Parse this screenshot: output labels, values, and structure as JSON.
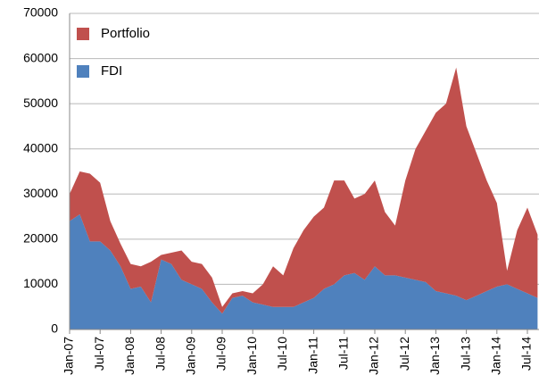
{
  "chart_data": {
    "type": "stacked-area",
    "categories": [
      "Jan-07",
      null,
      null,
      "Jul-07",
      null,
      null,
      "Jan-08",
      null,
      null,
      "Jul-08",
      null,
      null,
      "Jan-09",
      null,
      null,
      "Jul-09",
      null,
      null,
      "Jan-10",
      null,
      null,
      "Jul-10",
      null,
      null,
      "Jan-11",
      null,
      null,
      "Jul-11",
      null,
      null,
      "Jan-12",
      null,
      null,
      "Jul-12",
      null,
      null,
      "Jan-13",
      null,
      null,
      "Jul-13",
      null,
      null,
      "Jan-14",
      null,
      null,
      "Jul-14",
      null
    ],
    "series": [
      {
        "name": "FDI",
        "color": "#4f81bd",
        "values": [
          24000,
          25500,
          19500,
          19500,
          17500,
          14000,
          9000,
          9500,
          6000,
          15500,
          14500,
          11000,
          10000,
          9000,
          6000,
          3500,
          7000,
          7500,
          6000,
          5500,
          5000,
          5000,
          5000,
          6000,
          7000,
          9000,
          10000,
          12000,
          12500,
          11000,
          14000,
          12000,
          12000,
          11500,
          11000,
          10500,
          8500,
          8000,
          7500,
          6500,
          7500,
          8500,
          9500,
          10000,
          9000,
          8000,
          7000
        ]
      },
      {
        "name": "Portfolio",
        "color": "#c0504d",
        "values": [
          6000,
          9500,
          15000,
          13000,
          6500,
          5000,
          5500,
          4500,
          9000,
          1000,
          2500,
          6500,
          5000,
          5500,
          5500,
          1500,
          1000,
          1000,
          2000,
          4500,
          9000,
          7000,
          13000,
          16000,
          18000,
          18000,
          23000,
          21000,
          16500,
          19000,
          19000,
          14000,
          11000,
          21500,
          29000,
          33500,
          39500,
          42000,
          50500,
          38500,
          31500,
          24500,
          18500,
          3000,
          13000,
          19000,
          14000
        ]
      }
    ],
    "ylim": [
      0,
      70000
    ],
    "yticks": [
      0,
      10000,
      20000,
      30000,
      40000,
      50000,
      60000,
      70000
    ],
    "grid": true,
    "legend": "top-left"
  }
}
